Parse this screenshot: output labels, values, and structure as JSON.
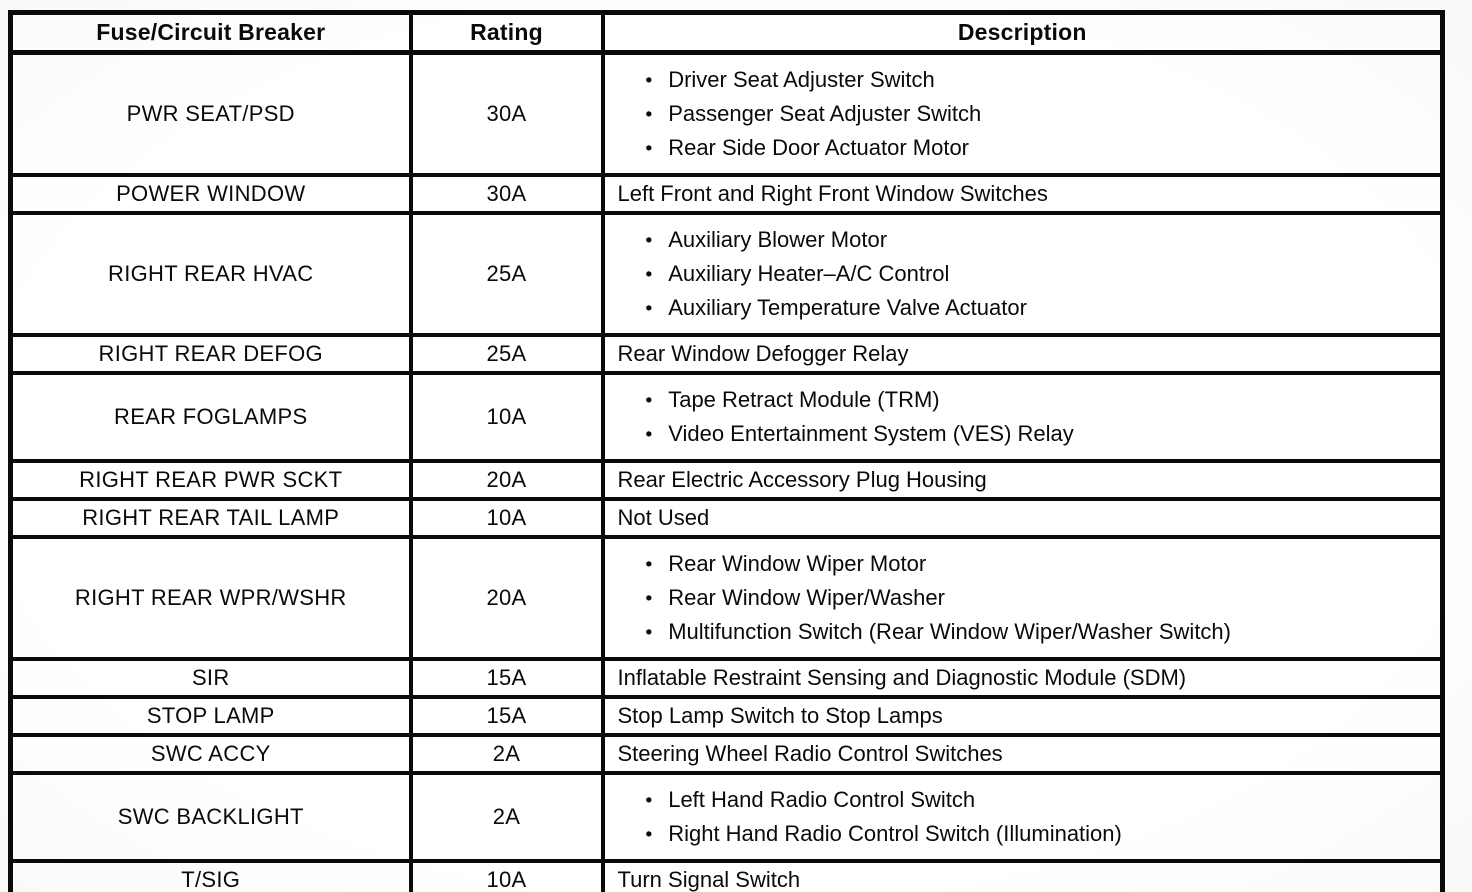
{
  "colors": {
    "border": "#0a0a0a",
    "background": "#ffffff",
    "text": "#0a0a0a"
  },
  "table": {
    "headers": [
      "Fuse/Circuit Breaker",
      "Rating",
      "Description"
    ],
    "rows": [
      {
        "fuse": "PWR SEAT/PSD",
        "rating": "30A",
        "description": {
          "bullets": [
            "Driver Seat Adjuster Switch",
            "Passenger Seat Adjuster Switch",
            "Rear Side Door Actuator Motor"
          ]
        }
      },
      {
        "fuse": "POWER WINDOW",
        "rating": "30A",
        "description": {
          "text": "Left Front and Right Front Window Switches"
        }
      },
      {
        "fuse": "RIGHT REAR HVAC",
        "rating": "25A",
        "description": {
          "bullets": [
            "Auxiliary Blower Motor",
            "Auxiliary Heater–A/C Control",
            "Auxiliary Temperature Valve Actuator"
          ]
        }
      },
      {
        "fuse": "RIGHT REAR DEFOG",
        "rating": "25A",
        "description": {
          "text": "Rear Window Defogger Relay"
        }
      },
      {
        "fuse": "REAR FOGLAMPS",
        "rating": "10A",
        "description": {
          "bullets": [
            "Tape Retract Module (TRM)",
            "Video Entertainment System (VES) Relay"
          ]
        }
      },
      {
        "fuse": "RIGHT REAR PWR SCKT",
        "rating": "20A",
        "description": {
          "text": "Rear Electric Accessory Plug Housing"
        }
      },
      {
        "fuse": "RIGHT REAR TAIL LAMP",
        "rating": "10A",
        "description": {
          "text": "Not Used"
        }
      },
      {
        "fuse": "RIGHT REAR WPR/WSHR",
        "rating": "20A",
        "description": {
          "bullets": [
            "Rear Window Wiper Motor",
            "Rear Window Wiper/Washer",
            "Multifunction Switch (Rear Window Wiper/Washer Switch)"
          ]
        }
      },
      {
        "fuse": "SIR",
        "rating": "15A",
        "description": {
          "text": "Inflatable Restraint Sensing and Diagnostic Module (SDM)"
        }
      },
      {
        "fuse": "STOP LAMP",
        "rating": "15A",
        "description": {
          "text": "Stop Lamp Switch to Stop Lamps"
        }
      },
      {
        "fuse": "SWC ACCY",
        "rating": "2A",
        "description": {
          "text": "Steering Wheel Radio Control Switches"
        }
      },
      {
        "fuse": "SWC BACKLIGHT",
        "rating": "2A",
        "description": {
          "bullets": [
            "Left Hand Radio Control Switch",
            "Right Hand Radio Control Switch (Illumination)"
          ]
        }
      },
      {
        "fuse": "T/SIG",
        "rating": "10A",
        "description": {
          "text": "Turn Signal Switch"
        }
      }
    ]
  }
}
